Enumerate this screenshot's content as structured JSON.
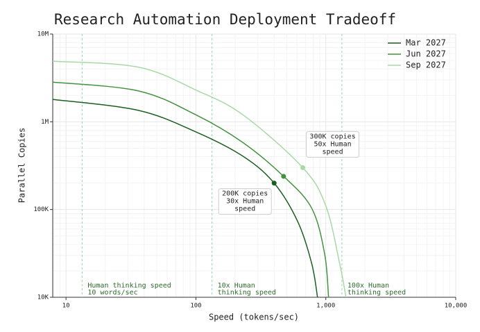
{
  "chart_data": {
    "type": "line",
    "title": "Research Automation Deployment Tradeoff",
    "xlabel": "Speed (tokens/sec)",
    "ylabel": "Parallel Copies",
    "xscale": "log",
    "yscale": "log",
    "grid": true,
    "legend": "upper right",
    "xlim": [
      7.9,
      10000
    ],
    "xticks": [
      10,
      100,
      {
        "value": 1000,
        "label": "1,000"
      },
      {
        "value": 10000,
        "label": "10,000"
      }
    ],
    "ylim": [
      10000,
      10000000
    ],
    "yticks": [
      {
        "value": 10000,
        "label": "10K"
      },
      {
        "value": 100000,
        "label": "100K"
      },
      {
        "value": 1000000,
        "label": "1M"
      },
      {
        "value": 10000000,
        "label": "10M"
      }
    ],
    "series": [
      {
        "name": "Mar 2027",
        "color": "#1b5e20",
        "x": [
          7.9,
          36,
          100,
          230,
          400,
          610,
          780,
          863
        ],
        "values": [
          1800000,
          1350000,
          766000,
          405000,
          200000,
          72000,
          24000,
          10000
        ],
        "marker": {
          "x": 400,
          "y": 200000
        }
      },
      {
        "name": "Jun 2027",
        "color": "#43923f",
        "x": [
          7.9,
          36,
          100,
          230,
          473,
          780,
          980,
          1050
        ],
        "values": [
          2830000,
          2250000,
          1200000,
          580000,
          239000,
          103000,
          31000,
          10000
        ],
        "marker": {
          "x": 473,
          "y": 239000
        }
      },
      {
        "name": "Sep 2027",
        "color": "#a8d8a8",
        "x": [
          7.9,
          36,
          100,
          230,
          665,
          1000,
          1280,
          1430
        ],
        "values": [
          4900000,
          4200000,
          2300000,
          1200000,
          300000,
          110000,
          24000,
          10000
        ],
        "marker": {
          "x": 665,
          "y": 300000
        }
      }
    ],
    "reference_lines": [
      {
        "x": 13.3,
        "lines": [
          "Human thinking speed",
          "10 words/sec"
        ]
      },
      {
        "x": 133,
        "lines": [
          "10x Human",
          "thinking speed"
        ]
      },
      {
        "x": 1330,
        "lines": [
          "100x Human",
          "thinking speed"
        ]
      }
    ],
    "callouts": [
      {
        "series": 0,
        "lines": [
          "200K copies",
          "30x Human",
          "speed"
        ]
      },
      {
        "series": 2,
        "lines": [
          "300K copies",
          "50x Human",
          "speed"
        ]
      }
    ]
  }
}
